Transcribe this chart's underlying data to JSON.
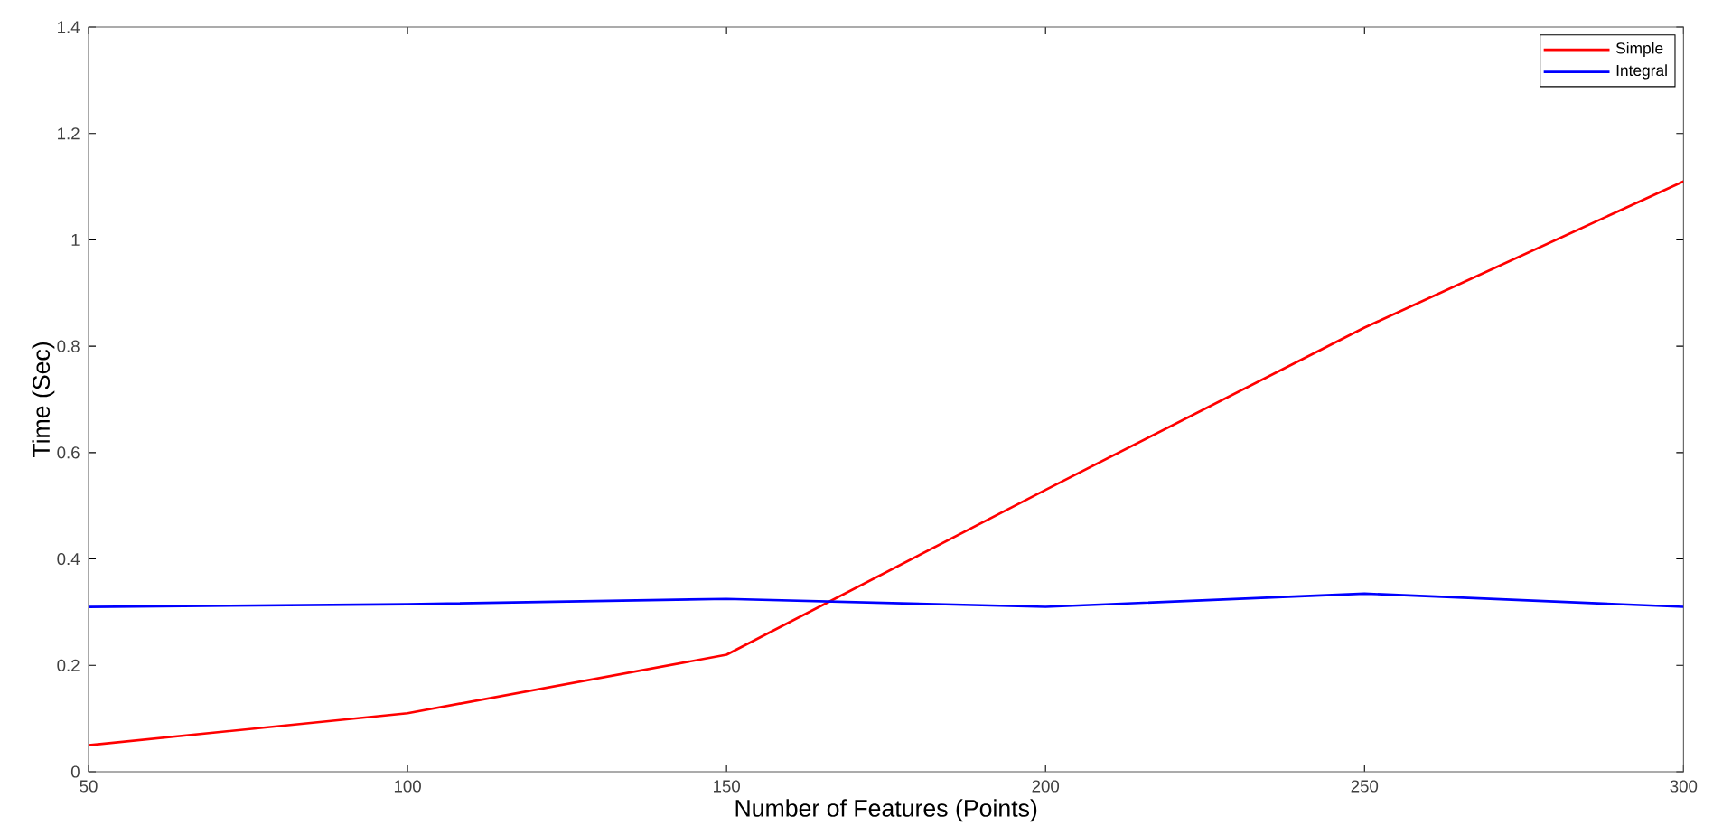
{
  "chart_data": {
    "type": "line",
    "xlabel": "Number of Features (Points)",
    "ylabel": "Time (Sec)",
    "x": [
      50,
      100,
      150,
      200,
      250,
      300
    ],
    "series": [
      {
        "name": "Simple",
        "color": "#ff0000",
        "values": [
          0.05,
          0.11,
          0.22,
          0.53,
          0.835,
          1.11
        ]
      },
      {
        "name": "Integral",
        "color": "#0000ff",
        "values": [
          0.31,
          0.315,
          0.325,
          0.31,
          0.335,
          0.31
        ]
      }
    ],
    "xlim": [
      50,
      300
    ],
    "xticks": [
      50,
      100,
      150,
      200,
      250,
      300
    ],
    "ylim": [
      0,
      1.4
    ],
    "yticks": [
      0,
      0.2,
      0.4,
      0.6,
      0.8,
      1,
      1.2,
      1.4
    ],
    "legend": "top right",
    "grid": false,
    "marker": "none",
    "line_style": "solid"
  }
}
